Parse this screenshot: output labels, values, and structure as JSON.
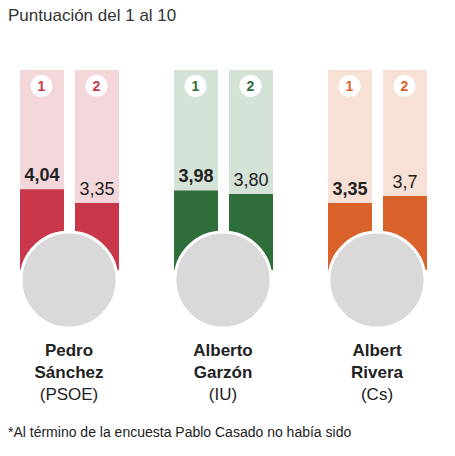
{
  "title": "Puntuación del 1 al 10",
  "chart_data": [
    {
      "type": "bar",
      "title": "Pedro Sánchez",
      "subtitle": "(PSOE)",
      "categories": [
        "1",
        "2"
      ],
      "values": [
        4.04,
        3.35
      ],
      "value_labels": [
        "4,04",
        "3,35"
      ],
      "color": "#c8374a",
      "ylim": [
        0,
        10
      ],
      "yticks": [],
      "data_labels": true,
      "tick_labels": "x"
    },
    {
      "type": "bar",
      "title": "Alberto Garzón",
      "subtitle": "(IU)",
      "categories": [
        "1",
        "2"
      ],
      "values": [
        3.98,
        3.8
      ],
      "value_labels": [
        "3,98",
        "3,80"
      ],
      "color": "#2e6e3b",
      "ylim": [
        0,
        10
      ],
      "yticks": [],
      "data_labels": true,
      "tick_labels": "x"
    },
    {
      "type": "bar",
      "title": "Albert Rivera",
      "subtitle": "(Cs)",
      "categories": [
        "1",
        "2"
      ],
      "values": [
        3.35,
        3.7
      ],
      "value_labels": [
        "3,35",
        "3,7"
      ],
      "color": "#d9622b",
      "ylim": [
        0,
        10
      ],
      "yticks": [],
      "data_labels": true,
      "tick_labels": "x"
    }
  ],
  "footnote": "*Al término de la encuesta Pablo Casado no había sido"
}
